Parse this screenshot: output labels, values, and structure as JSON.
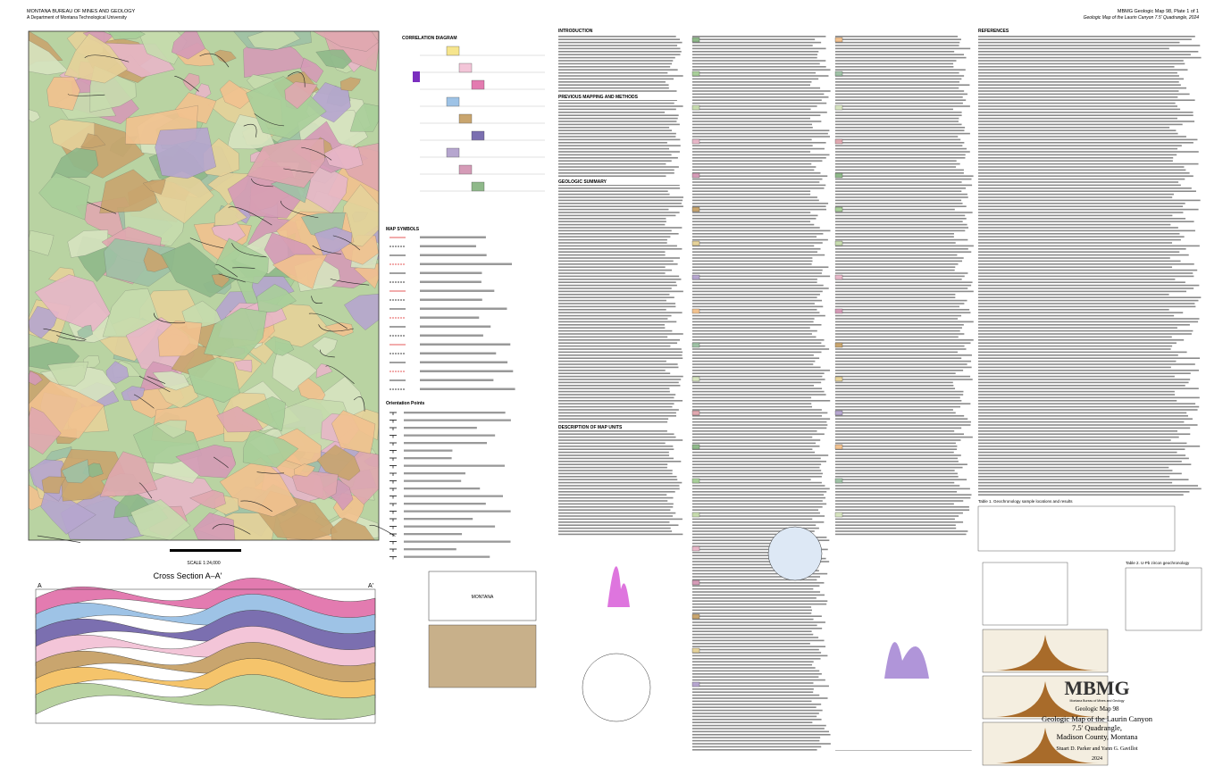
{
  "header": {
    "agency": "MONTANA BUREAU OF MINES AND GEOLOGY",
    "department": "A Department of Montana Technological University",
    "plate": "MBMG Geologic Map 98, Plate 1 of 1",
    "plate_title": "Geologic Map of the Laurin Canyon 7.5' Quadrangle, 2024"
  },
  "map": {
    "scale": "SCALE 1:24,000",
    "inset_label": "MONTANA"
  },
  "legend": {
    "correlation": "CORRELATION DIAGRAM",
    "symbols": "MAP SYMBOLS",
    "points": "Orientation Points"
  },
  "cross_section": {
    "title": "Cross Section A–A'",
    "left_end": "A",
    "right_end": "A'"
  },
  "text": {
    "sections": [
      "INTRODUCTION",
      "PREVIOUS MAPPING AND METHODS",
      "GEOLOGIC SUMMARY",
      "DESCRIPTION OF MAP UNITS",
      "REFERENCES"
    ]
  },
  "tables": {
    "table1": "Table 1. Geochronology sample locations and results",
    "table2": "Table 2. U-Pb zircon geochronology"
  },
  "title_block": {
    "logo": "MBMG",
    "logo_sub": "Montana Bureau of Mines and Geology",
    "series": "Geologic Map 98",
    "title_lines": [
      "Geologic Map of the Laurin Canyon",
      "7.5' Quadrangle,",
      "Madison County, Montana"
    ],
    "authors": "Stuart D. Parker and Yann G. Gavillot",
    "year": "2024"
  }
}
